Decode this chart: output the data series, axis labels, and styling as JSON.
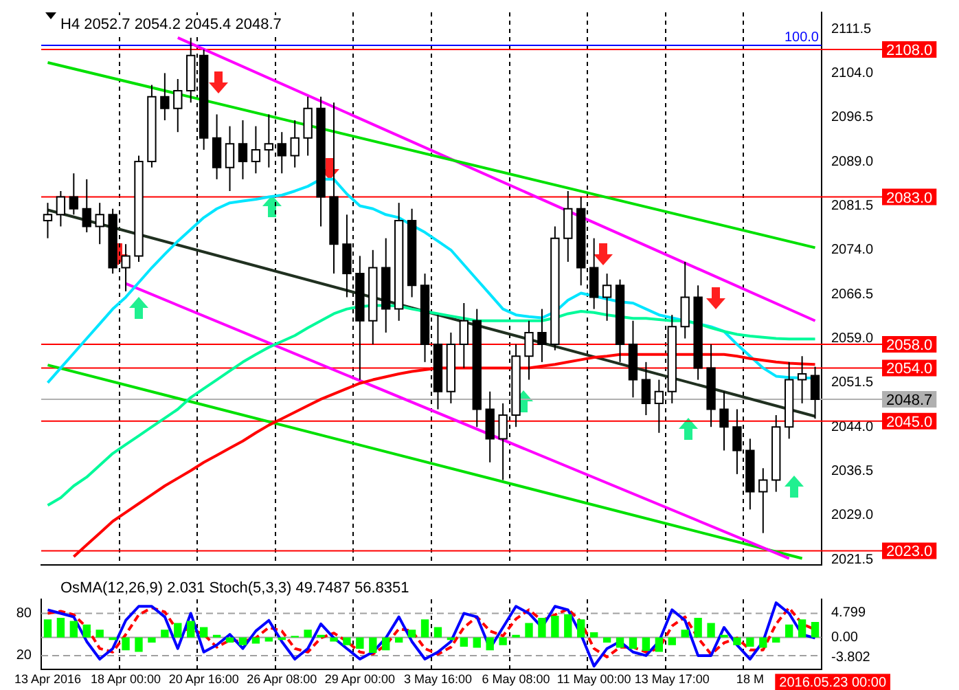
{
  "chart_data": [
    {
      "type": "candlestick",
      "title": "H4 2052.7 2054.2 2045.4 2048.7",
      "categories": [
        null,
        null,
        null,
        null,
        null,
        null,
        null,
        null,
        null,
        null,
        null,
        null,
        null,
        null,
        null,
        null,
        null,
        null,
        null,
        null,
        null,
        null,
        null,
        null,
        null,
        null,
        null,
        null,
        null,
        null,
        null,
        null,
        null,
        null,
        null,
        null,
        null,
        null,
        null,
        null,
        null,
        null,
        null,
        null,
        null,
        null,
        null,
        null,
        null,
        null,
        null,
        null,
        null,
        null,
        null,
        null,
        null,
        null,
        null,
        null
      ],
      "ohlc": [
        [
          2079,
          2082,
          2076,
          2080
        ],
        [
          2080,
          2084,
          2078,
          2083
        ],
        [
          2083,
          2087,
          2080,
          2081
        ],
        [
          2081,
          2086,
          2077,
          2078
        ],
        [
          2078,
          2082,
          2075,
          2080
        ],
        [
          2080,
          2081,
          2070,
          2071
        ],
        [
          2071,
          2075,
          2067,
          2073
        ],
        [
          2073,
          2090,
          2072,
          2089
        ],
        [
          2089,
          2102,
          2088,
          2100
        ],
        [
          2100,
          2104,
          2096,
          2098
        ],
        [
          2098,
          2103,
          2094,
          2101
        ],
        [
          2101,
          2110,
          2099,
          2107
        ],
        [
          2107,
          2108,
          2091,
          2093
        ],
        [
          2093,
          2097,
          2086,
          2088
        ],
        [
          2088,
          2095,
          2084,
          2092
        ],
        [
          2092,
          2096,
          2086,
          2089
        ],
        [
          2089,
          2095,
          2087,
          2091
        ],
        [
          2091,
          2097,
          2088,
          2092
        ],
        [
          2092,
          2094,
          2087,
          2090
        ],
        [
          2090,
          2096,
          2088,
          2093
        ],
        [
          2093,
          2100,
          2090,
          2098
        ],
        [
          2098,
          2100,
          2078,
          2083
        ],
        [
          2083,
          2099,
          2070,
          2075
        ],
        [
          2075,
          2080,
          2066,
          2070
        ],
        [
          2070,
          2073,
          2052,
          2062
        ],
        [
          2062,
          2074,
          2058,
          2071
        ],
        [
          2071,
          2076,
          2060,
          2064
        ],
        [
          2064,
          2082,
          2062,
          2079
        ],
        [
          2079,
          2081,
          2066,
          2068
        ],
        [
          2068,
          2070,
          2055,
          2058
        ],
        [
          2058,
          2063,
          2047,
          2050
        ],
        [
          2050,
          2060,
          2048,
          2058
        ],
        [
          2058,
          2065,
          2054,
          2062
        ],
        [
          2062,
          2064,
          2044,
          2047
        ],
        [
          2047,
          2050,
          2038,
          2042
        ],
        [
          2042,
          2048,
          2035,
          2046
        ],
        [
          2046,
          2058,
          2044,
          2056
        ],
        [
          2056,
          2062,
          2052,
          2060
        ],
        [
          2060,
          2064,
          2055,
          2058
        ],
        [
          2058,
          2078,
          2057,
          2076
        ],
        [
          2076,
          2084,
          2072,
          2081
        ],
        [
          2081,
          2083,
          2068,
          2071
        ],
        [
          2071,
          2076,
          2064,
          2066
        ],
        [
          2066,
          2070,
          2062,
          2068
        ],
        [
          2068,
          2069,
          2055,
          2058
        ],
        [
          2058,
          2062,
          2049,
          2052
        ],
        [
          2052,
          2055,
          2046,
          2048
        ],
        [
          2048,
          2052,
          2043,
          2050
        ],
        [
          2050,
          2063,
          2048,
          2061
        ],
        [
          2061,
          2072,
          2059,
          2066
        ],
        [
          2066,
          2068,
          2052,
          2054
        ],
        [
          2054,
          2058,
          2044,
          2047
        ],
        [
          2047,
          2050,
          2040,
          2044
        ],
        [
          2044,
          2047,
          2036,
          2040
        ],
        [
          2040,
          2042,
          2030,
          2033
        ],
        [
          2033,
          2037,
          2026,
          2035
        ],
        [
          2035,
          2046,
          2033,
          2044
        ],
        [
          2044,
          2055,
          2042,
          2052
        ],
        [
          2052,
          2056,
          2048,
          2053
        ],
        [
          2052.7,
          2054.2,
          2045.4,
          2048.7
        ]
      ],
      "series": [
        {
          "type": "line",
          "color": "#00fa9a",
          "values": [
            2030.7,
            2032,
            2034,
            2035.5,
            2037.5,
            2039.5,
            2041,
            2042.5,
            2044,
            2045.5,
            2047,
            2049,
            2050.5,
            2052,
            2053.5,
            2055,
            2056.3,
            2057.5,
            2058.5,
            2059.5,
            2060.8,
            2062,
            2063.2,
            2064,
            2064.4,
            2064.6,
            2064.6,
            2064.5,
            2064,
            2063.6,
            2063.2,
            2062.8,
            2062.4,
            2062,
            2062,
            2062,
            2062,
            2062,
            2062,
            2062.5,
            2063.2,
            2063.6,
            2063.4,
            2063,
            2062.7,
            2062.4,
            2062.4,
            2062.2,
            2062,
            2062,
            2061.5,
            2060.8,
            2060.2,
            2059.7,
            2059.4,
            2059.2,
            2059,
            2058.9,
            2058.9,
            2058.9
          ]
        },
        {
          "type": "line",
          "color": "#ff0000",
          "values": [
            null,
            null,
            2022,
            2024,
            2026,
            2028,
            2029.5,
            2031,
            2032.5,
            2034,
            2035.3,
            2036.6,
            2038,
            2039.2,
            2040.4,
            2041.6,
            2043,
            2044.3,
            2045.4,
            2046.5,
            2047.6,
            2048.7,
            2049.6,
            2050.5,
            2051.4,
            2052,
            2052.5,
            2053,
            2053.4,
            2053.7,
            2054,
            2054,
            2054,
            2054,
            2054,
            2054,
            2054,
            2054,
            2054.3,
            2054.6,
            2055,
            2055.4,
            2055.8,
            2056,
            2056.3,
            2056.3,
            2056.3,
            2056.3,
            2056.3,
            2056.3,
            2056.3,
            2056.3,
            2056.3,
            2056,
            2055.6,
            2055.3,
            2055,
            2054.8,
            2054.7,
            2054.6
          ]
        },
        {
          "type": "line",
          "color": "#00e5ff",
          "values": [
            2051.5,
            2054,
            2056.5,
            2059,
            2061.5,
            2064,
            2066,
            2068.5,
            2071,
            2073.3,
            2075.5,
            2077.5,
            2079.5,
            2081,
            2082,
            2082.3,
            2082.6,
            2083,
            2083.3,
            2084,
            2084.8,
            2086,
            2086,
            2083.5,
            2081.5,
            2081,
            2080,
            2079.5,
            2078.2,
            2077,
            2075.5,
            2074,
            2071.5,
            2069,
            2066.5,
            2064,
            2063,
            2062.7,
            2062.5,
            2063.5,
            2065.5,
            2066.7,
            2066.2,
            2065.7,
            2065.2,
            2065,
            2064,
            2063,
            2062.5,
            2062,
            2061.5,
            2061,
            2060.2,
            2058,
            2056,
            2054,
            2052.6,
            2052.4,
            2052.3,
            2052.3
          ]
        },
        {
          "type": "line",
          "color": "#00e000",
          "values": [
            2105.8,
            null,
            null,
            null,
            null,
            null,
            null,
            null,
            null,
            null,
            null,
            null,
            null,
            null,
            null,
            null,
            null,
            null,
            null,
            null,
            null,
            null,
            null,
            null,
            null,
            null,
            null,
            null,
            null,
            null,
            null,
            null,
            null,
            null,
            null,
            null,
            null,
            null,
            null,
            null,
            null,
            null,
            null,
            null,
            null,
            null,
            null,
            null,
            null,
            null,
            null,
            null,
            null,
            null,
            null,
            null,
            null,
            null,
            null,
            2074.4
          ]
        },
        {
          "type": "line",
          "color": "#ff00ff",
          "values": [
            null,
            null,
            null,
            null,
            null,
            null,
            null,
            null,
            null,
            null,
            2110,
            null,
            null,
            null,
            null,
            null,
            null,
            null,
            null,
            null,
            null,
            null,
            null,
            null,
            null,
            null,
            null,
            null,
            null,
            null,
            null,
            null,
            null,
            null,
            null,
            null,
            null,
            null,
            null,
            null,
            null,
            null,
            null,
            null,
            null,
            null,
            null,
            null,
            null,
            null,
            null,
            null,
            null,
            null,
            null,
            null,
            null,
            null,
            null,
            2062
          ]
        },
        {
          "type": "line",
          "color": "#ff00ff",
          "values": [
            null,
            null,
            null,
            null,
            null,
            null,
            2068.3,
            null,
            null,
            null,
            null,
            null,
            null,
            null,
            null,
            null,
            null,
            null,
            null,
            null,
            null,
            null,
            null,
            null,
            null,
            null,
            null,
            null,
            null,
            null,
            null,
            null,
            null,
            null,
            null,
            null,
            null,
            null,
            null,
            null,
            null,
            null,
            null,
            null,
            null,
            null,
            null,
            null,
            null,
            null,
            null,
            null,
            null,
            null,
            null,
            null,
            null,
            2021.7,
            null,
            null
          ]
        },
        {
          "type": "line",
          "color": "#00e000",
          "values": [
            2054.5,
            null,
            null,
            null,
            null,
            null,
            null,
            null,
            null,
            null,
            null,
            null,
            null,
            null,
            null,
            null,
            null,
            null,
            null,
            null,
            null,
            null,
            null,
            null,
            null,
            null,
            null,
            null,
            null,
            null,
            null,
            null,
            null,
            null,
            null,
            null,
            null,
            null,
            null,
            null,
            null,
            null,
            null,
            null,
            null,
            null,
            null,
            null,
            null,
            null,
            null,
            null,
            null,
            null,
            null,
            null,
            null,
            null,
            2021.7,
            null
          ]
        },
        {
          "type": "line",
          "color": "#203020",
          "values": [
            2080.8,
            null,
            null,
            null,
            null,
            null,
            null,
            null,
            null,
            null,
            null,
            null,
            null,
            null,
            null,
            null,
            null,
            null,
            null,
            null,
            null,
            null,
            null,
            null,
            null,
            null,
            null,
            null,
            null,
            null,
            null,
            null,
            null,
            null,
            null,
            null,
            null,
            null,
            null,
            null,
            null,
            null,
            null,
            null,
            null,
            null,
            null,
            null,
            null,
            null,
            null,
            null,
            null,
            null,
            null,
            null,
            null,
            null,
            null,
            2045.8
          ]
        }
      ],
      "ylim": [
        2020.6,
        2114.3
      ],
      "yticks": [
        2021.5,
        {
          "value": 2029,
          "label": "2029.0"
        },
        2036.5,
        {
          "value": 2044,
          "label": "2044.0"
        },
        2051.5,
        {
          "value": 2059,
          "label": "2059.0"
        },
        2066.5,
        {
          "value": 2074,
          "label": "2074.0"
        },
        2081.5,
        {
          "value": 2089,
          "label": "2089.0"
        },
        2096.5,
        {
          "value": 2104,
          "label": "2104.0"
        },
        2111.5
      ],
      "ref_lines": [
        {
          "axis": "y",
          "value": 2108,
          "label": "2108.0",
          "color": "#ff0000"
        },
        {
          "axis": "y",
          "value": 2108.7,
          "color": "#0000ff"
        },
        {
          "axis": "y",
          "value": 2083,
          "label": "2083.0",
          "color": "#ff0000"
        },
        {
          "axis": "y",
          "value": 2058,
          "label": "2058.0",
          "color": "#ff0000"
        },
        {
          "axis": "y",
          "value": 2054,
          "label": "2054.0",
          "color": "#ff0000"
        },
        {
          "axis": "y",
          "value": 2048.7,
          "label": "2048.7",
          "color": "#b0b0b0"
        },
        {
          "axis": "y",
          "value": 2045,
          "label": "2045.0",
          "color": "#ff0000"
        },
        {
          "axis": "y",
          "value": 2023,
          "label": "2023.0",
          "color": "#ff0000"
        }
      ],
      "annotations": [
        {
          "text": "100.0",
          "y": 2108.7
        }
      ],
      "grid": "x",
      "tick_labels": "y"
    },
    {
      "type": "bar",
      "title": "OsMA(12,26,9) 2.031 Stoch(5,3,3) 49.7487 56.8351",
      "categories": [
        "13 Apr 2016",
        null,
        null,
        null,
        null,
        null,
        "18 Apr 00:00",
        null,
        null,
        null,
        null,
        null,
        "20 Apr 16:00",
        null,
        null,
        null,
        null,
        null,
        "26 Apr 08:00",
        null,
        null,
        null,
        null,
        null,
        "29 Apr 00:00",
        null,
        null,
        null,
        null,
        null,
        "3 May 16:00",
        null,
        null,
        null,
        null,
        null,
        "6 May 08:00",
        null,
        null,
        null,
        null,
        null,
        "11 May 00:00",
        null,
        null,
        null,
        null,
        null,
        "13 May 17:00",
        null,
        null,
        null,
        null,
        null,
        "18 M",
        null,
        null,
        null,
        null,
        null
      ],
      "series": [
        {
          "type": "bar",
          "color": "#00ff00",
          "values": [
            3.5,
            3.8,
            3.2,
            2.5,
            1.5,
            -0.5,
            -2.5,
            -2.8,
            -1,
            1.5,
            2.8,
            3.2,
            2,
            0.5,
            -1,
            -1.5,
            -1.2,
            -0.8,
            -0.5,
            0.3,
            1.5,
            0.5,
            -0.8,
            -1.5,
            -2.2,
            -3,
            -2.5,
            -1,
            1.5,
            3.5,
            2,
            -0.5,
            -1.8,
            -2,
            -2.5,
            -1.5,
            0.5,
            2.8,
            3.8,
            4.2,
            4.5,
            3.5,
            1,
            -1,
            -2,
            -2.2,
            -2.6,
            -2.8,
            -1.5,
            1.5,
            3.8,
            2.8,
            0.5,
            -1.5,
            -1.8,
            -2,
            -1,
            2.5,
            3.5,
            3
          ]
        },
        {
          "type": "line",
          "color": "#0000ff",
          "axis": "y2",
          "values": [
            85,
            80,
            75,
            40,
            15,
            30,
            70,
            90,
            90,
            75,
            30,
            80,
            25,
            35,
            50,
            30,
            55,
            70,
            40,
            15,
            30,
            65,
            45,
            30,
            15,
            25,
            45,
            75,
            40,
            15,
            25,
            40,
            80,
            75,
            30,
            60,
            90,
            80,
            60,
            90,
            85,
            50,
            5,
            30,
            40,
            25,
            20,
            40,
            85,
            70,
            20,
            20,
            60,
            35,
            15,
            40,
            95,
            80,
            50,
            45
          ]
        },
        {
          "type": "line",
          "color": "#ff0000",
          "axis": "y2",
          "line_style": "dashed",
          "values": [
            80,
            83,
            78,
            60,
            30,
            25,
            50,
            78,
            88,
            82,
            55,
            58,
            50,
            32,
            42,
            40,
            45,
            60,
            55,
            30,
            25,
            45,
            52,
            40,
            25,
            22,
            35,
            58,
            55,
            30,
            22,
            32,
            60,
            75,
            55,
            48,
            72,
            85,
            70,
            78,
            86,
            68,
            30,
            18,
            32,
            32,
            25,
            30,
            62,
            75,
            45,
            22,
            38,
            45,
            28,
            28,
            65,
            88,
            65,
            57
          ]
        }
      ],
      "ylim": [
        -6.25,
        7.4
      ],
      "yticks": [
        4.799,
        {
          "value": 0,
          "label": "0.00"
        },
        -3.802
      ],
      "y2lim": [
        0,
        100
      ],
      "y2ticks": [
        20,
        80
      ],
      "ref_lines": [
        {
          "axis": "y2",
          "value": 80,
          "color": "#a0a0a0",
          "line_style": "dashed"
        },
        {
          "axis": "y2",
          "value": 20,
          "color": "#a0a0a0",
          "line_style": "dashed"
        },
        {
          "axis": "y",
          "value": 0,
          "color": "#a0a0a0"
        }
      ],
      "annotations": [
        "2016.05.23 00:00"
      ],
      "grid": "x"
    }
  ]
}
